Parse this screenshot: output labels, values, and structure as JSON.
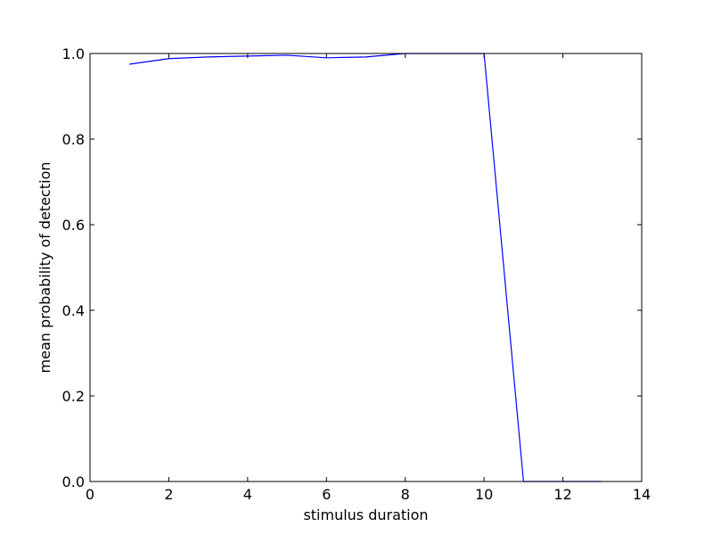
{
  "chart_data": {
    "type": "line",
    "title": "",
    "xlabel": "stimulus duration",
    "ylabel": "mean probability of detection",
    "xlim": [
      0,
      14
    ],
    "ylim": [
      0.0,
      1.0
    ],
    "x_ticks": [
      0,
      2,
      4,
      6,
      8,
      10,
      12,
      14
    ],
    "x_tick_labels": [
      "0",
      "2",
      "4",
      "6",
      "8",
      "10",
      "12",
      "14"
    ],
    "y_ticks": [
      0.0,
      0.2,
      0.4,
      0.6,
      0.8,
      1.0
    ],
    "y_tick_labels": [
      "0.0",
      "0.2",
      "0.4",
      "0.6",
      "0.8",
      "1.0"
    ],
    "grid": false,
    "legend": "none",
    "series": [
      {
        "color": "#0000ff",
        "x": [
          1,
          2,
          3,
          4,
          5,
          6,
          7,
          8,
          9,
          10,
          11,
          12,
          13
        ],
        "values": [
          0.975,
          0.988,
          0.992,
          0.994,
          0.996,
          0.99,
          0.992,
          1.0,
          1.0,
          1.0,
          0.0,
          0.0,
          0.0
        ]
      }
    ]
  }
}
